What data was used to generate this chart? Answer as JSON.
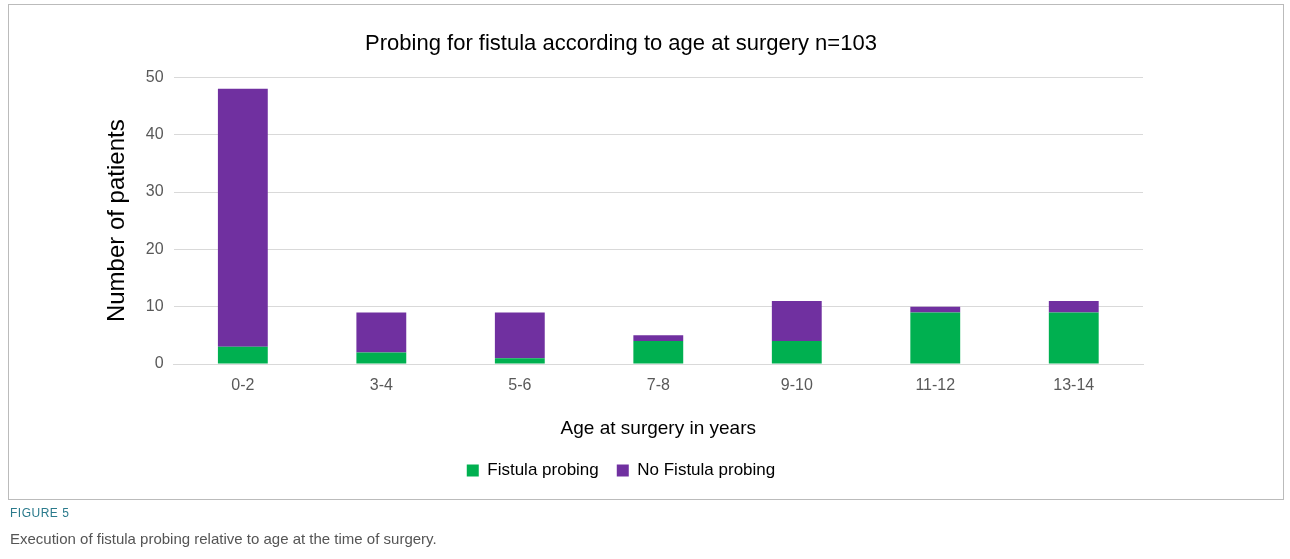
{
  "chart_data": {
    "type": "bar",
    "title": "Probing for fistula according to age at surgery n=103",
    "xlabel": "Age at surgery in years",
    "ylabel": "Number of patients",
    "categories": [
      "0-2",
      "3-4",
      "5-6",
      "7-8",
      "9-10",
      "11-12",
      "13-14"
    ],
    "series": [
      {
        "name": "Fistula probing",
        "color": "#00b050",
        "values": [
          3,
          2,
          1,
          4,
          4,
          9,
          9
        ]
      },
      {
        "name": "No Fistula probing",
        "color": "#7030a0",
        "values": [
          45,
          7,
          8,
          1,
          7,
          1,
          2
        ]
      }
    ],
    "stacked": true,
    "ylim": [
      0,
      50
    ],
    "yticks": [
      0,
      10,
      20,
      30,
      40,
      50
    ],
    "grid": "y",
    "legend": "bottom",
    "annotations": [
      "FIGURE 5",
      "Execution of fistula probing relative to age at the time of surgery."
    ]
  }
}
